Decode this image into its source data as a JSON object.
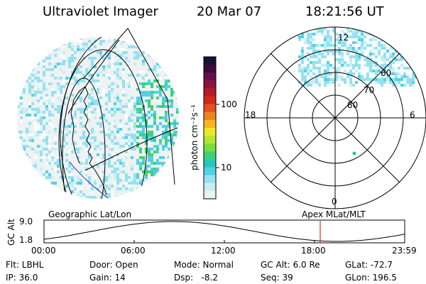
{
  "header": {
    "instrument": "Ultraviolet Imager",
    "date": "20 Mar 07",
    "time": "18:21:56 UT"
  },
  "colorbar": {
    "unit": "photon cm⁻²s⁻¹",
    "ticks": [
      "100",
      "10"
    ],
    "colors": [
      "#141432",
      "#3c0a3c",
      "#641050",
      "#8c1440",
      "#b41c28",
      "#d2281e",
      "#e6501e",
      "#f0821e",
      "#f8b41e",
      "#f0e628",
      "#b4e632",
      "#78dc3c",
      "#3cd278",
      "#28c8b4",
      "#50d2e6",
      "#96e1f0",
      "#c8eef4",
      "#e6f4f4"
    ]
  },
  "polar": {
    "angle_labels": [
      "12",
      "18",
      "6",
      "0"
    ],
    "lat_labels": [
      "60",
      "70",
      "80"
    ]
  },
  "timeline": {
    "left_title": "Geographic Lat/Lon",
    "right_title": "Apex MLat/MLT",
    "axis_label": "GC Alt",
    "y_ticks": [
      "9.0",
      "1.8"
    ],
    "x_ticks": [
      "00:00",
      "06:00",
      "12:00",
      "18:00",
      "23:59"
    ],
    "current_time_marker": "18:21",
    "marker_color": "#e00000"
  },
  "info": {
    "filter": "Flt: LBHL",
    "ip": "IP: 36.0",
    "door": "Door: Open",
    "gain": "Gain: 14",
    "mode": "Mode: Normal",
    "dsp": "Dsp:   -8.2",
    "gc_alt": "GC Alt: 6.0 Re",
    "seq": "Seq: 39",
    "glat": "GLat: -72.7",
    "glon": "GLon: 196.5"
  }
}
